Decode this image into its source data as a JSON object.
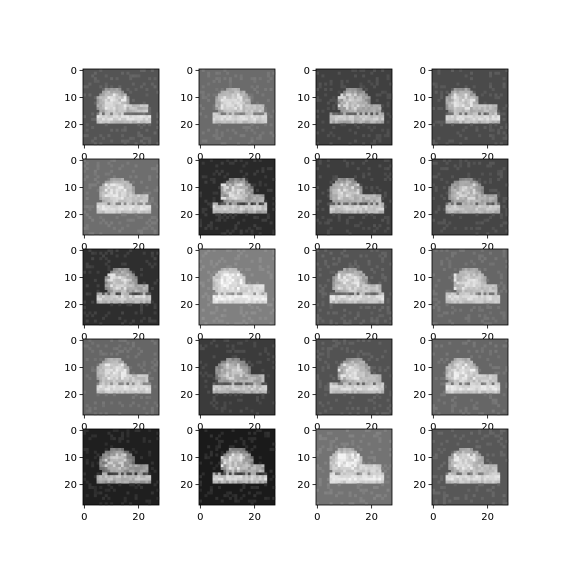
{
  "figure": {
    "rows": 5,
    "cols": 4
  },
  "chart_data": {
    "type": "heatmap",
    "title": "",
    "xlabel": "",
    "ylabel": "",
    "colormap": "gray",
    "image_size": [
      28,
      28
    ],
    "xlim": [
      0,
      27
    ],
    "ylim": [
      27,
      0
    ],
    "x_ticks": [
      0,
      20
    ],
    "y_ticks": [
      0,
      10,
      20
    ],
    "x_tick_labels": [
      "0",
      "20"
    ],
    "y_tick_labels": [
      "0",
      "10",
      "20"
    ],
    "grid": false,
    "panels": [
      {
        "background_level": 0.33,
        "brightness": 0.92
      },
      {
        "background_level": 0.42,
        "brightness": 0.9
      },
      {
        "background_level": 0.25,
        "brightness": 0.85
      },
      {
        "background_level": 0.29,
        "brightness": 0.9
      },
      {
        "background_level": 0.43,
        "brightness": 0.92
      },
      {
        "background_level": 0.16,
        "brightness": 0.88
      },
      {
        "background_level": 0.24,
        "brightness": 0.88
      },
      {
        "background_level": 0.27,
        "brightness": 0.85
      },
      {
        "background_level": 0.18,
        "brightness": 0.9
      },
      {
        "background_level": 0.5,
        "brightness": 0.98
      },
      {
        "background_level": 0.33,
        "brightness": 0.92
      },
      {
        "background_level": 0.4,
        "brightness": 0.9
      },
      {
        "background_level": 0.4,
        "brightness": 0.92
      },
      {
        "background_level": 0.23,
        "brightness": 0.85
      },
      {
        "background_level": 0.32,
        "brightness": 0.9
      },
      {
        "background_level": 0.4,
        "brightness": 0.94
      },
      {
        "background_level": 0.12,
        "brightness": 0.82
      },
      {
        "background_level": 0.1,
        "brightness": 0.9
      },
      {
        "background_level": 0.45,
        "brightness": 0.96
      },
      {
        "background_level": 0.34,
        "brightness": 0.92
      }
    ]
  }
}
